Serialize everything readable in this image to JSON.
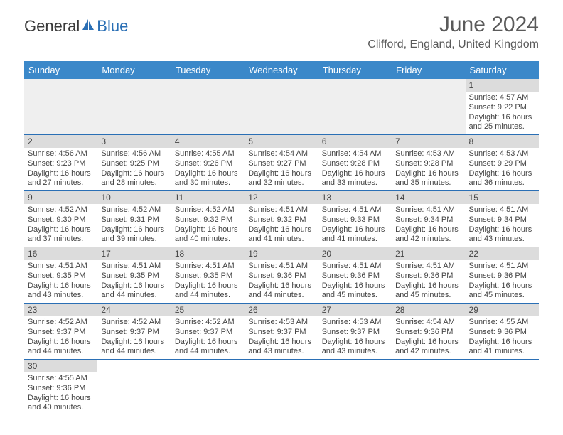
{
  "brand": {
    "general": "General",
    "blue": "Blue"
  },
  "header": {
    "title": "June 2024",
    "location": "Clifford, England, United Kingdom"
  },
  "colors": {
    "header_bg": "#3b88c9",
    "header_text": "#ffffff",
    "daynum_bg": "#dcdcdc",
    "border": "#2a6fb5",
    "empty_bg": "#efefef",
    "text": "#444444",
    "title_text": "#5a5a5a",
    "brand_blue": "#2a6fb5"
  },
  "typography": {
    "title_fontsize": 30,
    "location_fontsize": 16,
    "dayheader_fontsize": 13,
    "daynum_fontsize": 12,
    "body_fontsize": 11
  },
  "calendar": {
    "day_headers": [
      "Sunday",
      "Monday",
      "Tuesday",
      "Wednesday",
      "Thursday",
      "Friday",
      "Saturday"
    ],
    "rows": [
      [
        {
          "num": "",
          "lines": []
        },
        {
          "num": "",
          "lines": []
        },
        {
          "num": "",
          "lines": []
        },
        {
          "num": "",
          "lines": []
        },
        {
          "num": "",
          "lines": []
        },
        {
          "num": "",
          "lines": []
        },
        {
          "num": "1",
          "lines": [
            "Sunrise: 4:57 AM",
            "Sunset: 9:22 PM",
            "Daylight: 16 hours and 25 minutes."
          ]
        }
      ],
      [
        {
          "num": "2",
          "lines": [
            "Sunrise: 4:56 AM",
            "Sunset: 9:23 PM",
            "Daylight: 16 hours and 27 minutes."
          ]
        },
        {
          "num": "3",
          "lines": [
            "Sunrise: 4:56 AM",
            "Sunset: 9:25 PM",
            "Daylight: 16 hours and 28 minutes."
          ]
        },
        {
          "num": "4",
          "lines": [
            "Sunrise: 4:55 AM",
            "Sunset: 9:26 PM",
            "Daylight: 16 hours and 30 minutes."
          ]
        },
        {
          "num": "5",
          "lines": [
            "Sunrise: 4:54 AM",
            "Sunset: 9:27 PM",
            "Daylight: 16 hours and 32 minutes."
          ]
        },
        {
          "num": "6",
          "lines": [
            "Sunrise: 4:54 AM",
            "Sunset: 9:28 PM",
            "Daylight: 16 hours and 33 minutes."
          ]
        },
        {
          "num": "7",
          "lines": [
            "Sunrise: 4:53 AM",
            "Sunset: 9:28 PM",
            "Daylight: 16 hours and 35 minutes."
          ]
        },
        {
          "num": "8",
          "lines": [
            "Sunrise: 4:53 AM",
            "Sunset: 9:29 PM",
            "Daylight: 16 hours and 36 minutes."
          ]
        }
      ],
      [
        {
          "num": "9",
          "lines": [
            "Sunrise: 4:52 AM",
            "Sunset: 9:30 PM",
            "Daylight: 16 hours and 37 minutes."
          ]
        },
        {
          "num": "10",
          "lines": [
            "Sunrise: 4:52 AM",
            "Sunset: 9:31 PM",
            "Daylight: 16 hours and 39 minutes."
          ]
        },
        {
          "num": "11",
          "lines": [
            "Sunrise: 4:52 AM",
            "Sunset: 9:32 PM",
            "Daylight: 16 hours and 40 minutes."
          ]
        },
        {
          "num": "12",
          "lines": [
            "Sunrise: 4:51 AM",
            "Sunset: 9:32 PM",
            "Daylight: 16 hours and 41 minutes."
          ]
        },
        {
          "num": "13",
          "lines": [
            "Sunrise: 4:51 AM",
            "Sunset: 9:33 PM",
            "Daylight: 16 hours and 41 minutes."
          ]
        },
        {
          "num": "14",
          "lines": [
            "Sunrise: 4:51 AM",
            "Sunset: 9:34 PM",
            "Daylight: 16 hours and 42 minutes."
          ]
        },
        {
          "num": "15",
          "lines": [
            "Sunrise: 4:51 AM",
            "Sunset: 9:34 PM",
            "Daylight: 16 hours and 43 minutes."
          ]
        }
      ],
      [
        {
          "num": "16",
          "lines": [
            "Sunrise: 4:51 AM",
            "Sunset: 9:35 PM",
            "Daylight: 16 hours and 43 minutes."
          ]
        },
        {
          "num": "17",
          "lines": [
            "Sunrise: 4:51 AM",
            "Sunset: 9:35 PM",
            "Daylight: 16 hours and 44 minutes."
          ]
        },
        {
          "num": "18",
          "lines": [
            "Sunrise: 4:51 AM",
            "Sunset: 9:35 PM",
            "Daylight: 16 hours and 44 minutes."
          ]
        },
        {
          "num": "19",
          "lines": [
            "Sunrise: 4:51 AM",
            "Sunset: 9:36 PM",
            "Daylight: 16 hours and 44 minutes."
          ]
        },
        {
          "num": "20",
          "lines": [
            "Sunrise: 4:51 AM",
            "Sunset: 9:36 PM",
            "Daylight: 16 hours and 45 minutes."
          ]
        },
        {
          "num": "21",
          "lines": [
            "Sunrise: 4:51 AM",
            "Sunset: 9:36 PM",
            "Daylight: 16 hours and 45 minutes."
          ]
        },
        {
          "num": "22",
          "lines": [
            "Sunrise: 4:51 AM",
            "Sunset: 9:36 PM",
            "Daylight: 16 hours and 45 minutes."
          ]
        }
      ],
      [
        {
          "num": "23",
          "lines": [
            "Sunrise: 4:52 AM",
            "Sunset: 9:37 PM",
            "Daylight: 16 hours and 44 minutes."
          ]
        },
        {
          "num": "24",
          "lines": [
            "Sunrise: 4:52 AM",
            "Sunset: 9:37 PM",
            "Daylight: 16 hours and 44 minutes."
          ]
        },
        {
          "num": "25",
          "lines": [
            "Sunrise: 4:52 AM",
            "Sunset: 9:37 PM",
            "Daylight: 16 hours and 44 minutes."
          ]
        },
        {
          "num": "26",
          "lines": [
            "Sunrise: 4:53 AM",
            "Sunset: 9:37 PM",
            "Daylight: 16 hours and 43 minutes."
          ]
        },
        {
          "num": "27",
          "lines": [
            "Sunrise: 4:53 AM",
            "Sunset: 9:37 PM",
            "Daylight: 16 hours and 43 minutes."
          ]
        },
        {
          "num": "28",
          "lines": [
            "Sunrise: 4:54 AM",
            "Sunset: 9:36 PM",
            "Daylight: 16 hours and 42 minutes."
          ]
        },
        {
          "num": "29",
          "lines": [
            "Sunrise: 4:55 AM",
            "Sunset: 9:36 PM",
            "Daylight: 16 hours and 41 minutes."
          ]
        }
      ],
      [
        {
          "num": "30",
          "lines": [
            "Sunrise: 4:55 AM",
            "Sunset: 9:36 PM",
            "Daylight: 16 hours and 40 minutes."
          ]
        },
        {
          "num": "",
          "lines": []
        },
        {
          "num": "",
          "lines": []
        },
        {
          "num": "",
          "lines": []
        },
        {
          "num": "",
          "lines": []
        },
        {
          "num": "",
          "lines": []
        },
        {
          "num": "",
          "lines": []
        }
      ]
    ]
  }
}
